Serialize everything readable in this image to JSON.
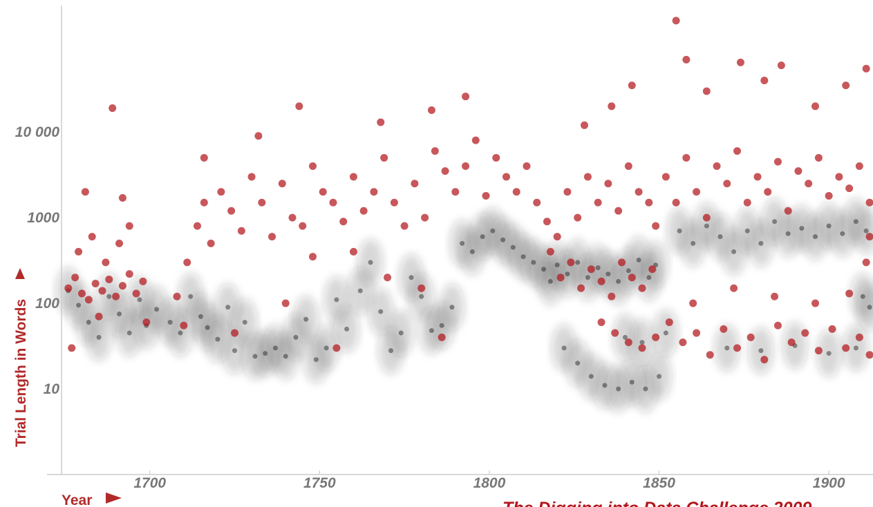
{
  "chart_data": {
    "type": "scatter",
    "xlabel": "Year",
    "ylabel": "Trial Length in Words",
    "credit": "The Digging into Data Challenge 2009",
    "y_scale": "log",
    "xlim": [
      1674,
      1913
    ],
    "ylim": [
      1,
      300000
    ],
    "x_ticks": [
      {
        "value": 1700,
        "label": "1700"
      },
      {
        "value": 1750,
        "label": "1750"
      },
      {
        "value": 1800,
        "label": "1800"
      },
      {
        "value": 1850,
        "label": "1850"
      },
      {
        "value": 1900,
        "label": "1900"
      }
    ],
    "y_ticks": [
      {
        "value": 10,
        "label": "10"
      },
      {
        "value": 100,
        "label": "100"
      },
      {
        "value": 1000,
        "label": "1000"
      },
      {
        "value": 10000,
        "label": "10 000"
      }
    ],
    "grid": false,
    "colors": {
      "highlight": "#b3161c",
      "background_points": "#1a1a1a",
      "axis_title": "#b12a2a",
      "tick_label": "#777777",
      "axis_line": "#cccccc"
    },
    "series": [
      {
        "color": "#1a1a1a",
        "points": [
          [
            1676,
            140
          ],
          [
            1679,
            95
          ],
          [
            1682,
            60
          ],
          [
            1685,
            40
          ],
          [
            1688,
            120
          ],
          [
            1691,
            75
          ],
          [
            1694,
            45
          ],
          [
            1697,
            110
          ],
          [
            1699,
            55
          ],
          [
            1702,
            85
          ],
          [
            1706,
            60
          ],
          [
            1709,
            45
          ],
          [
            1712,
            120
          ],
          [
            1715,
            70
          ],
          [
            1717,
            52
          ],
          [
            1720,
            38
          ],
          [
            1723,
            90
          ],
          [
            1725,
            28
          ],
          [
            1728,
            60
          ],
          [
            1731,
            24
          ],
          [
            1734,
            26
          ],
          [
            1737,
            30
          ],
          [
            1740,
            24
          ],
          [
            1743,
            40
          ],
          [
            1746,
            65
          ],
          [
            1749,
            22
          ],
          [
            1752,
            30
          ],
          [
            1755,
            110
          ],
          [
            1758,
            50
          ],
          [
            1762,
            140
          ],
          [
            1765,
            300
          ],
          [
            1768,
            80
          ],
          [
            1771,
            28
          ],
          [
            1774,
            45
          ],
          [
            1777,
            200
          ],
          [
            1780,
            120
          ],
          [
            1783,
            48
          ],
          [
            1786,
            55
          ],
          [
            1789,
            90
          ],
          [
            1792,
            500
          ],
          [
            1795,
            400
          ],
          [
            1798,
            600
          ],
          [
            1801,
            700
          ],
          [
            1804,
            550
          ],
          [
            1807,
            450
          ],
          [
            1810,
            350
          ],
          [
            1813,
            300
          ],
          [
            1816,
            250
          ],
          [
            1818,
            180
          ],
          [
            1820,
            280
          ],
          [
            1823,
            220
          ],
          [
            1826,
            300
          ],
          [
            1829,
            200
          ],
          [
            1832,
            260
          ],
          [
            1835,
            220
          ],
          [
            1838,
            180
          ],
          [
            1841,
            240
          ],
          [
            1844,
            320
          ],
          [
            1847,
            200
          ],
          [
            1849,
            280
          ],
          [
            1822,
            30
          ],
          [
            1826,
            20
          ],
          [
            1830,
            14
          ],
          [
            1834,
            11
          ],
          [
            1838,
            10
          ],
          [
            1842,
            12
          ],
          [
            1846,
            10
          ],
          [
            1850,
            14
          ],
          [
            1840,
            40
          ],
          [
            1845,
            35
          ],
          [
            1852,
            45
          ],
          [
            1856,
            700
          ],
          [
            1860,
            500
          ],
          [
            1864,
            800
          ],
          [
            1868,
            600
          ],
          [
            1872,
            400
          ],
          [
            1876,
            700
          ],
          [
            1880,
            500
          ],
          [
            1884,
            900
          ],
          [
            1888,
            650
          ],
          [
            1892,
            750
          ],
          [
            1896,
            600
          ],
          [
            1900,
            800
          ],
          [
            1904,
            650
          ],
          [
            1908,
            900
          ],
          [
            1911,
            700
          ],
          [
            1870,
            30
          ],
          [
            1880,
            28
          ],
          [
            1890,
            32
          ],
          [
            1900,
            26
          ],
          [
            1908,
            30
          ],
          [
            1910,
            120
          ],
          [
            1912,
            90
          ]
        ]
      },
      {
        "color": "#b3161c",
        "points": [
          [
            1676,
            150
          ],
          [
            1678,
            200
          ],
          [
            1680,
            130
          ],
          [
            1682,
            110
          ],
          [
            1684,
            170
          ],
          [
            1686,
            140
          ],
          [
            1688,
            190
          ],
          [
            1690,
            120
          ],
          [
            1692,
            160
          ],
          [
            1694,
            220
          ],
          [
            1696,
            130
          ],
          [
            1698,
            180
          ],
          [
            1679,
            400
          ],
          [
            1683,
            600
          ],
          [
            1687,
            300
          ],
          [
            1691,
            500
          ],
          [
            1694,
            800
          ],
          [
            1689,
            19000
          ],
          [
            1681,
            2000
          ],
          [
            1677,
            30
          ],
          [
            1685,
            70
          ],
          [
            1699,
            60
          ],
          [
            1692,
            1700
          ],
          [
            1708,
            120
          ],
          [
            1711,
            300
          ],
          [
            1714,
            800
          ],
          [
            1716,
            1500
          ],
          [
            1718,
            500
          ],
          [
            1721,
            2000
          ],
          [
            1724,
            1200
          ],
          [
            1727,
            700
          ],
          [
            1730,
            3000
          ],
          [
            1733,
            1500
          ],
          [
            1736,
            600
          ],
          [
            1739,
            2500
          ],
          [
            1742,
            1000
          ],
          [
            1745,
            800
          ],
          [
            1748,
            4000
          ],
          [
            1751,
            2000
          ],
          [
            1754,
            1500
          ],
          [
            1757,
            900
          ],
          [
            1760,
            3000
          ],
          [
            1763,
            1200
          ],
          [
            1766,
            2000
          ],
          [
            1769,
            5000
          ],
          [
            1772,
            1500
          ],
          [
            1775,
            800
          ],
          [
            1778,
            2500
          ],
          [
            1781,
            1000
          ],
          [
            1784,
            6000
          ],
          [
            1787,
            3500
          ],
          [
            1790,
            2000
          ],
          [
            1793,
            4000
          ],
          [
            1796,
            8000
          ],
          [
            1799,
            1800
          ],
          [
            1732,
            9000
          ],
          [
            1744,
            20000
          ],
          [
            1768,
            13000
          ],
          [
            1783,
            18000
          ],
          [
            1793,
            26000
          ],
          [
            1716,
            5000
          ],
          [
            1748,
            350
          ],
          [
            1760,
            400
          ],
          [
            1770,
            200
          ],
          [
            1780,
            150
          ],
          [
            1740,
            100
          ],
          [
            1725,
            45
          ],
          [
            1710,
            55
          ],
          [
            1755,
            30
          ],
          [
            1786,
            40
          ],
          [
            1802,
            5000
          ],
          [
            1805,
            3000
          ],
          [
            1808,
            2000
          ],
          [
            1811,
            4000
          ],
          [
            1814,
            1500
          ],
          [
            1817,
            900
          ],
          [
            1820,
            600
          ],
          [
            1823,
            2000
          ],
          [
            1826,
            1000
          ],
          [
            1829,
            3000
          ],
          [
            1832,
            1500
          ],
          [
            1835,
            2500
          ],
          [
            1838,
            1200
          ],
          [
            1841,
            4000
          ],
          [
            1844,
            2000
          ],
          [
            1847,
            1500
          ],
          [
            1849,
            800
          ],
          [
            1818,
            400
          ],
          [
            1821,
            200
          ],
          [
            1824,
            300
          ],
          [
            1827,
            150
          ],
          [
            1830,
            250
          ],
          [
            1833,
            180
          ],
          [
            1836,
            120
          ],
          [
            1839,
            300
          ],
          [
            1842,
            200
          ],
          [
            1845,
            150
          ],
          [
            1848,
            250
          ],
          [
            1833,
            60
          ],
          [
            1837,
            45
          ],
          [
            1841,
            35
          ],
          [
            1845,
            30
          ],
          [
            1849,
            40
          ],
          [
            1836,
            20000
          ],
          [
            1842,
            35000
          ],
          [
            1828,
            12000
          ],
          [
            1852,
            3000
          ],
          [
            1855,
            1500
          ],
          [
            1858,
            5000
          ],
          [
            1861,
            2000
          ],
          [
            1864,
            1000
          ],
          [
            1867,
            4000
          ],
          [
            1870,
            2500
          ],
          [
            1873,
            6000
          ],
          [
            1876,
            1500
          ],
          [
            1879,
            3000
          ],
          [
            1882,
            2000
          ],
          [
            1885,
            4500
          ],
          [
            1888,
            1200
          ],
          [
            1891,
            3500
          ],
          [
            1894,
            2500
          ],
          [
            1897,
            5000
          ],
          [
            1900,
            1800
          ],
          [
            1903,
            3000
          ],
          [
            1906,
            2200
          ],
          [
            1909,
            4000
          ],
          [
            1912,
            1500
          ],
          [
            1855,
            200000
          ],
          [
            1858,
            70000
          ],
          [
            1874,
            65000
          ],
          [
            1886,
            60000
          ],
          [
            1911,
            55000
          ],
          [
            1864,
            30000
          ],
          [
            1896,
            20000
          ],
          [
            1881,
            40000
          ],
          [
            1905,
            35000
          ],
          [
            1853,
            60
          ],
          [
            1857,
            35
          ],
          [
            1861,
            45
          ],
          [
            1865,
            25
          ],
          [
            1869,
            50
          ],
          [
            1873,
            30
          ],
          [
            1877,
            40
          ],
          [
            1881,
            22
          ],
          [
            1885,
            55
          ],
          [
            1889,
            35
          ],
          [
            1893,
            45
          ],
          [
            1897,
            28
          ],
          [
            1901,
            50
          ],
          [
            1905,
            30
          ],
          [
            1909,
            40
          ],
          [
            1912,
            25
          ],
          [
            1860,
            100
          ],
          [
            1872,
            150
          ],
          [
            1884,
            120
          ],
          [
            1896,
            100
          ],
          [
            1906,
            130
          ],
          [
            1911,
            300
          ],
          [
            1912,
            600
          ]
        ]
      }
    ]
  }
}
